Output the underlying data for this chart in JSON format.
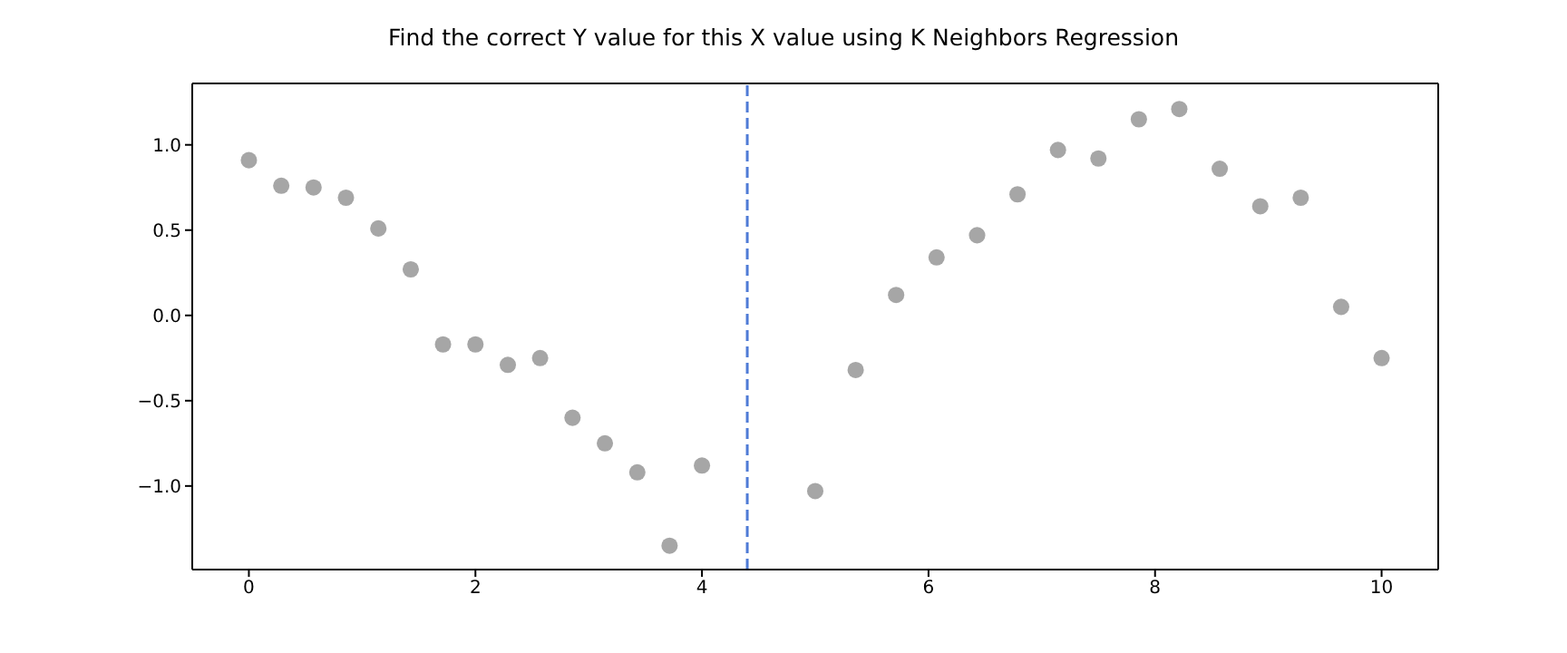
{
  "chart_data": {
    "type": "scatter",
    "title": "Find the correct Y value for this X value using K Neighbors Regression",
    "x": [
      0,
      0.286,
      0.571,
      0.857,
      1.143,
      1.429,
      1.714,
      2.0,
      2.286,
      2.571,
      2.857,
      3.143,
      3.429,
      3.714,
      4.0,
      5.0,
      5.357,
      5.714,
      6.071,
      6.429,
      6.786,
      7.143,
      7.5,
      7.857,
      8.214,
      8.571,
      8.929,
      9.286,
      9.643,
      10.0
    ],
    "series": [
      {
        "color": "#a6a6a6",
        "values": [
          0.91,
          0.76,
          0.75,
          0.69,
          0.51,
          0.27,
          -0.17,
          -0.17,
          -0.29,
          -0.25,
          -0.6,
          -0.75,
          -0.92,
          -1.35,
          -0.88,
          -1.03,
          -0.32,
          0.12,
          0.34,
          0.47,
          0.71,
          0.97,
          0.92,
          1.15,
          1.21,
          0.86,
          0.64,
          0.69,
          0.05,
          -0.25
        ]
      }
    ],
    "marker": "circle",
    "xlim": [
      -0.5,
      10.5
    ],
    "xticks": [
      0,
      2,
      4,
      6,
      8,
      10
    ],
    "ylim": [
      -1.49,
      1.36
    ],
    "yticks": [
      {
        "value": -1,
        "label": "−1.0"
      },
      {
        "value": -0.5,
        "label": "−0.5"
      },
      {
        "value": 0,
        "label": "0.0"
      },
      {
        "value": 0.5,
        "label": "0.5"
      },
      {
        "value": 1,
        "label": "1.0"
      }
    ],
    "ref_lines": [
      {
        "axis": "x",
        "value": 4.4,
        "color": "#4f7bd6",
        "line_style": "dashed"
      }
    ],
    "grid": false
  }
}
